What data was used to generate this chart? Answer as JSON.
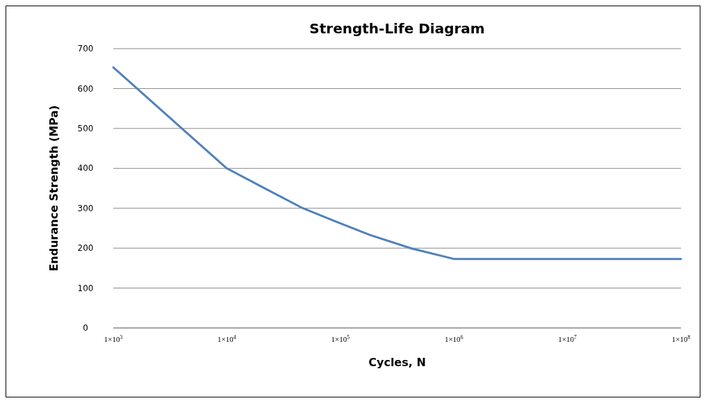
{
  "chart_data": {
    "type": "line",
    "title": "Strength-Life Diagram",
    "xlabel": "Cycles, N",
    "ylabel": "Endurance Strength (MPa)",
    "x": [
      1000,
      10000,
      21900,
      46800,
      85100,
      182000,
      427000,
      1000000,
      100000000
    ],
    "series": [
      {
        "color": "#4f81bd",
        "values": [
          653,
          400,
          349,
          300,
          270,
          233,
          199,
          173,
          173
        ]
      }
    ],
    "log": "x",
    "xlim": [
      1000,
      100000000
    ],
    "xticks": [
      {
        "value": 1000,
        "label": "1×10$^{3}$"
      },
      {
        "value": 10000,
        "label": "1×10$^{4}$"
      },
      {
        "value": 100000,
        "label": "1×10$^{5}$"
      },
      {
        "value": 1000000,
        "label": "1×10$^{6}$"
      },
      {
        "value": 10000000,
        "label": "1×10$^{7}$"
      },
      {
        "value": 100000000,
        "label": "1×10$^{8}$"
      }
    ],
    "ylim": [
      0,
      700
    ],
    "yticks": [
      0,
      100,
      200,
      300,
      400,
      500,
      600,
      700
    ],
    "grid": "y",
    "marker": "none",
    "line_style": "solid"
  }
}
